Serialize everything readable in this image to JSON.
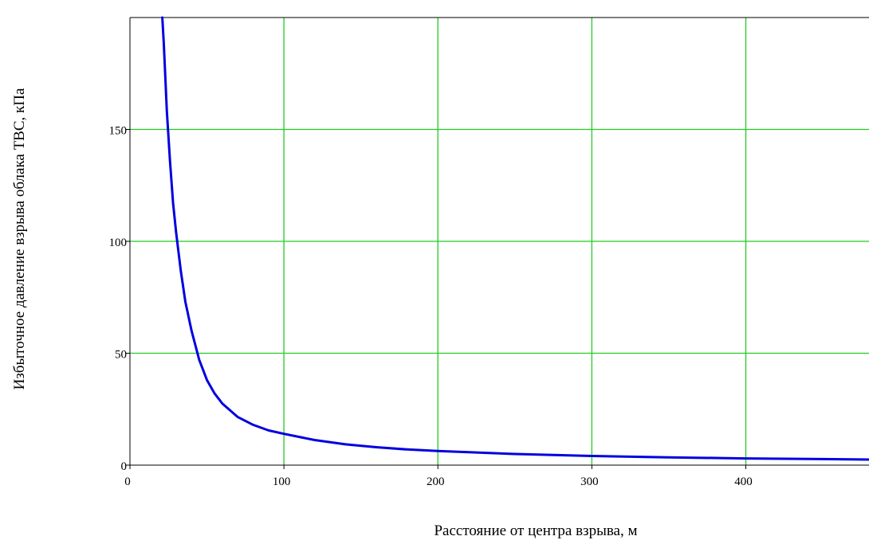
{
  "chart_data": {
    "type": "line",
    "xlabel": "Расстояние от центра взрыва, м",
    "ylabel": "Избыточное давление взрыва облака ТВС, кПа",
    "xlim": [
      0,
      480
    ],
    "ylim": [
      0,
      200
    ],
    "x_ticks": [
      0,
      100,
      200,
      300,
      400
    ],
    "y_ticks": [
      0,
      50,
      100,
      150
    ],
    "grid": true,
    "colors": {
      "line": "#0000e0",
      "grid": "#22cc22",
      "axis": "#000000"
    },
    "series": [
      {
        "x": [
          21,
          22,
          24,
          26,
          28,
          30,
          33,
          36,
          40,
          45,
          50,
          55,
          60,
          70,
          80,
          90,
          100,
          120,
          140,
          160,
          180,
          200,
          250,
          300,
          350,
          400,
          450,
          480
        ],
        "values": [
          200,
          188,
          158,
          136,
          117,
          104,
          87,
          73,
          60,
          47,
          38,
          32,
          27.5,
          21.5,
          18,
          15.5,
          14,
          11.2,
          9.3,
          8,
          7,
          6.3,
          5,
          4.1,
          3.5,
          3,
          2.7,
          2.5
        ]
      }
    ]
  }
}
